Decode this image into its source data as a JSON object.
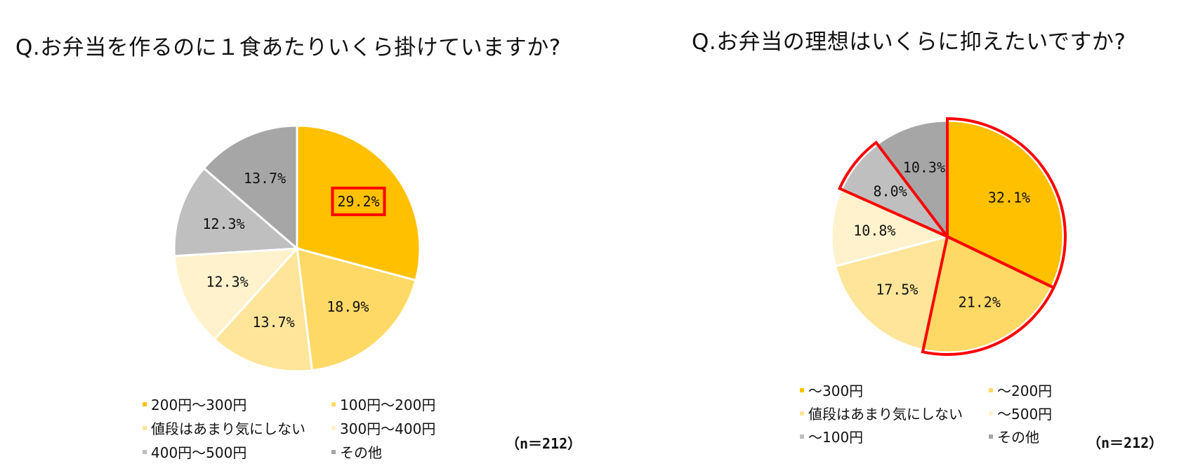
{
  "chart_data": [
    {
      "type": "pie",
      "title": "Q.お弁当を作るのに１食あたりいくら掛けていますか?",
      "n_label": "（n＝212）",
      "highlighted_label": "29.2%",
      "slices": [
        {
          "name": "200円～300円",
          "value": 29.2,
          "label": "29.2%",
          "color": "#FFC000"
        },
        {
          "name": "100円～200円",
          "value": 18.9,
          "label": "18.9%",
          "color": "#FFD966"
        },
        {
          "name": "値段はあまり気にしない",
          "value": 13.7,
          "label": "13.7%",
          "color": "#FFE599"
        },
        {
          "name": "300円～400円",
          "value": 12.3,
          "label": "12.3%",
          "color": "#FFF2CC"
        },
        {
          "name": "400円～500円",
          "value": 12.3,
          "label": "12.3%",
          "color": "#BFBFBF"
        },
        {
          "name": "その他",
          "value": 13.7,
          "label": "13.7%",
          "color": "#A6A6A6"
        }
      ]
    },
    {
      "type": "pie",
      "title": "Q.お弁当の理想はいくらに抑えたいですか?",
      "n_label": "（n＝212）",
      "highlighted_slices": [
        "～300円",
        "～200円",
        "～100円"
      ],
      "slices": [
        {
          "name": "～300円",
          "value": 32.1,
          "label": "32.1%",
          "color": "#FFC000"
        },
        {
          "name": "～200円",
          "value": 21.2,
          "label": "21.2%",
          "color": "#FFD966"
        },
        {
          "name": "値段はあまり気にしない",
          "value": 17.5,
          "label": "17.5%",
          "color": "#FFE599"
        },
        {
          "name": "～500円",
          "value": 10.8,
          "label": "10.8%",
          "color": "#FFF2CC"
        },
        {
          "name": "～100円",
          "value": 8.0,
          "label": "8.0%",
          "color": "#BFBFBF"
        },
        {
          "name": "その他",
          "value": 10.3,
          "label": "10.3%",
          "color": "#A6A6A6"
        }
      ]
    }
  ],
  "highlight_color": "#FF0000"
}
